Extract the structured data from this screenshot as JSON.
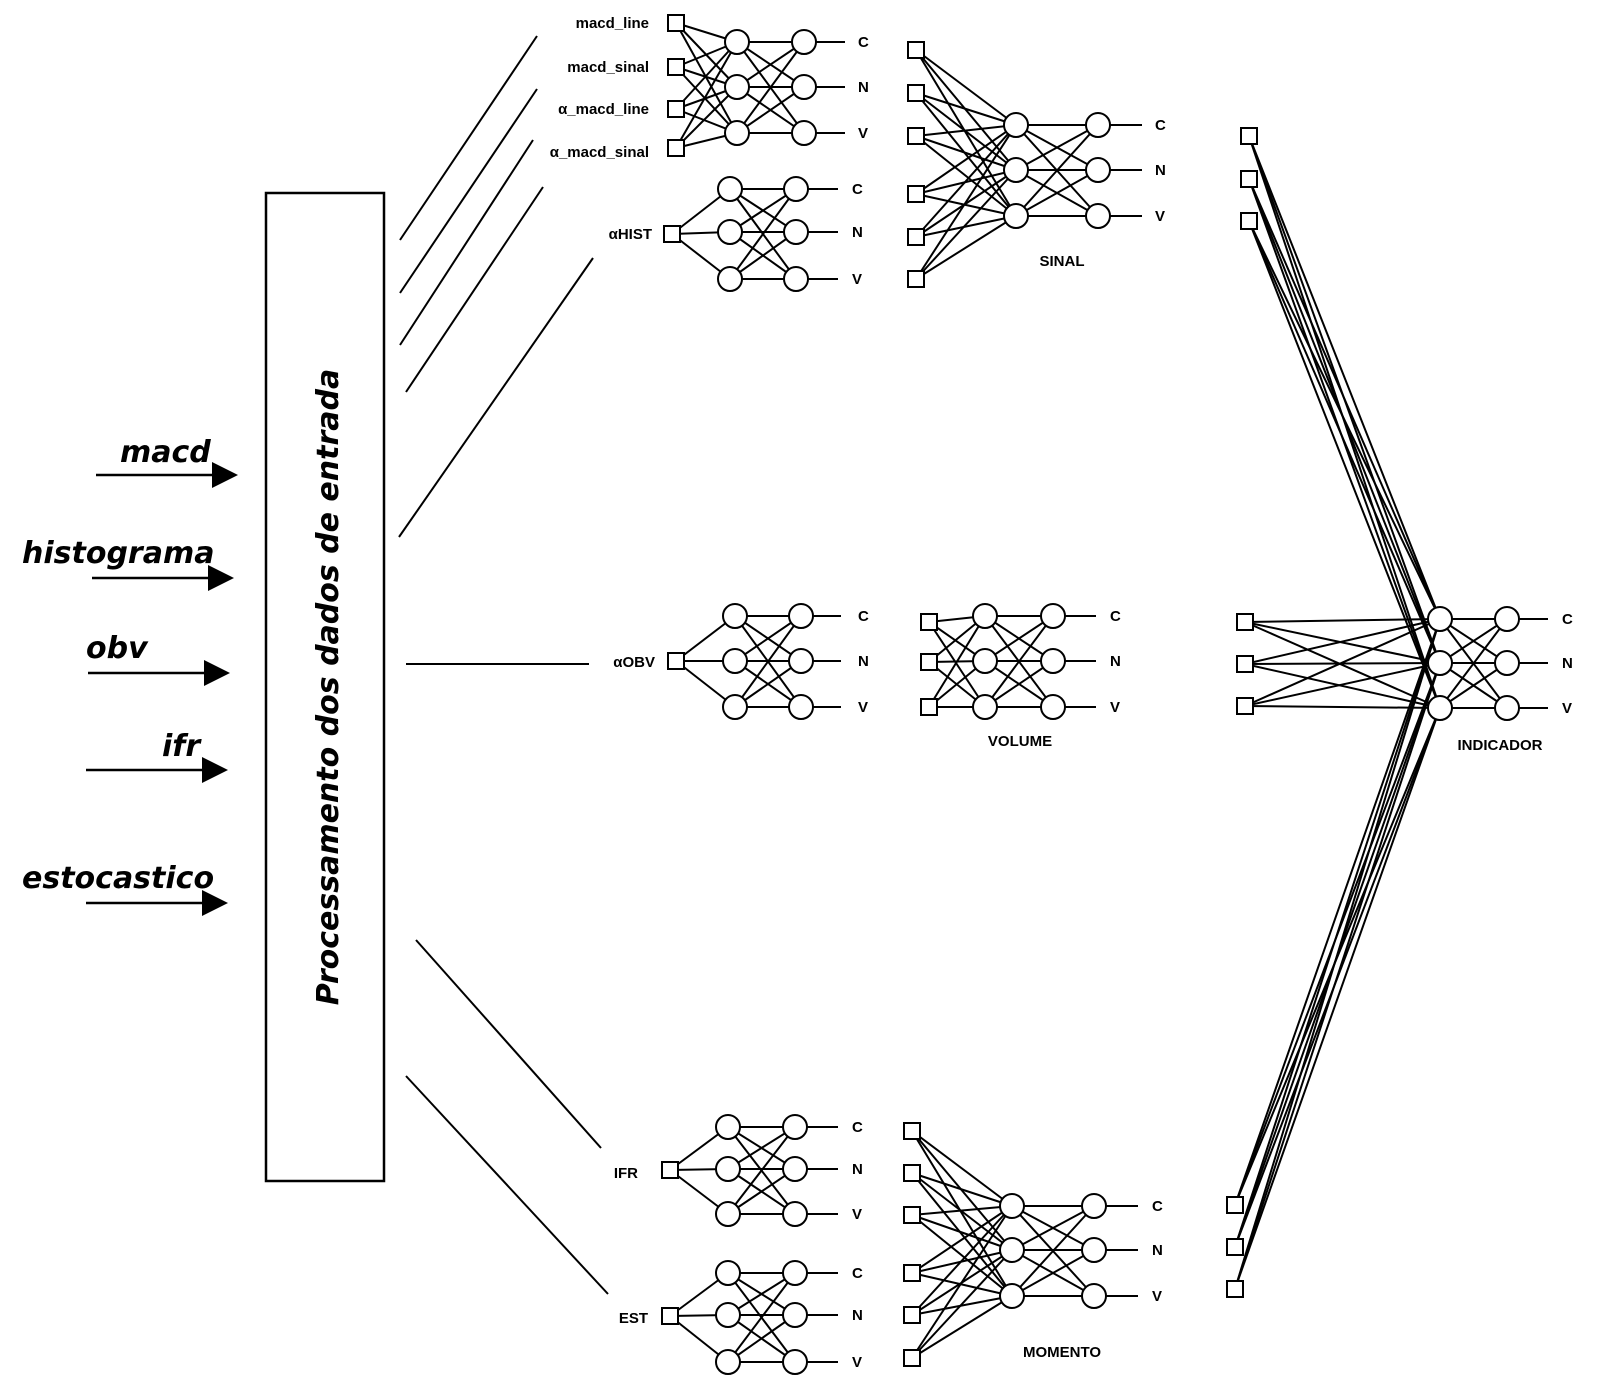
{
  "inputs": [
    "macd",
    "histograma",
    "obv",
    "ifr",
    "estocastico"
  ],
  "processing_box": {
    "title": "Processamento dos dados de entrada"
  },
  "sinal_group": {
    "macd_inputs": [
      "macd_line",
      "macd_sinal",
      "α_macd_line",
      "α_macd_sinal"
    ],
    "hist_input": "αHIST",
    "name": "SINAL"
  },
  "volume_group": {
    "input": "αOBV",
    "name": "VOLUME"
  },
  "momento_group": {
    "ifr_input": "IFR",
    "est_input": "EST",
    "name": "MOMENTO"
  },
  "indicador": {
    "name": "INDICADOR"
  },
  "outputs": [
    "C",
    "N",
    "V"
  ]
}
